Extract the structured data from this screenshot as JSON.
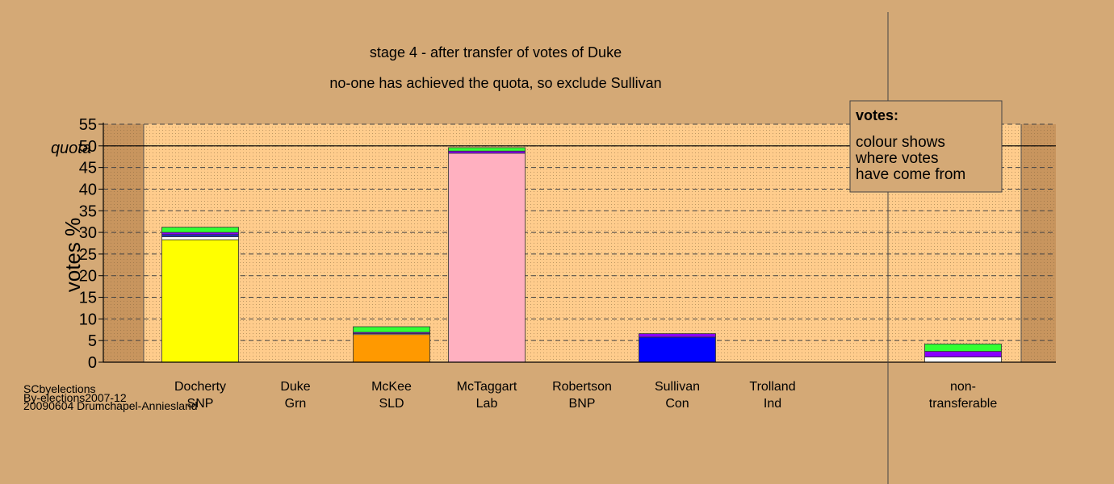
{
  "chart_data": {
    "type": "bar",
    "stacked": true,
    "title": "stage 4 - after transfer of votes of Duke",
    "subtitle": "no-one has achieved the quota, so exclude Sullivan",
    "ylabel": "votes %",
    "ylim": [
      0,
      55
    ],
    "yticks": [
      0,
      5,
      10,
      15,
      20,
      25,
      30,
      35,
      40,
      45,
      50,
      55
    ],
    "quota": {
      "label": "quota",
      "value": 50
    },
    "categories": [
      {
        "name": "Docherty",
        "party": "SNP"
      },
      {
        "name": "Duke",
        "party": "Grn"
      },
      {
        "name": "McKee",
        "party": "SLD"
      },
      {
        "name": "McTaggart",
        "party": "Lab"
      },
      {
        "name": "Robertson",
        "party": "BNP"
      },
      {
        "name": "Sullivan",
        "party": "Con"
      },
      {
        "name": "Trolland",
        "party": "Ind"
      },
      {
        "name": "non-",
        "party": "transferable"
      }
    ],
    "bars": [
      {
        "category": "Docherty",
        "segments": [
          {
            "color": "#ffff00",
            "value": 28.3
          },
          {
            "color": "#ffffff",
            "value": 0.7
          },
          {
            "color": "#2233cc",
            "value": 0.5
          },
          {
            "color": "#8800ff",
            "value": 0.5
          },
          {
            "color": "#33ff33",
            "value": 1.2
          }
        ]
      },
      {
        "category": "Duke",
        "segments": []
      },
      {
        "category": "McKee",
        "segments": [
          {
            "color": "#ff9900",
            "value": 6.4
          },
          {
            "color": "#ffffff",
            "value": 0.2
          },
          {
            "color": "#8800ff",
            "value": 0.3
          },
          {
            "color": "#33ff33",
            "value": 1.3
          }
        ]
      },
      {
        "category": "McTaggart",
        "segments": [
          {
            "color": "#ffb0c0",
            "value": 48.3
          },
          {
            "color": "#8800ff",
            "value": 0.5
          },
          {
            "color": "#33ff33",
            "value": 0.8
          }
        ]
      },
      {
        "category": "Robertson",
        "segments": []
      },
      {
        "category": "Sullivan",
        "segments": [
          {
            "color": "#0000ff",
            "value": 5.8
          },
          {
            "color": "#8800ff",
            "value": 0.8
          }
        ]
      },
      {
        "category": "Trolland",
        "segments": []
      },
      {
        "category": "non-transferable",
        "segments": [
          {
            "color": "#ffffff",
            "value": 1.2
          },
          {
            "color": "#8800ff",
            "value": 1.3
          },
          {
            "color": "#33ff33",
            "value": 1.7
          }
        ]
      }
    ],
    "legend": {
      "title": "votes:",
      "lines": [
        "colour shows",
        "where votes",
        "have come from"
      ],
      "placement": "top-right"
    },
    "grid": true,
    "plot_bg": "#ffcc8c",
    "page_bg": "#d4a976"
  },
  "footer": {
    "line1": "SCbyelections",
    "line2": "By-elections2007-12",
    "line3": "20090604 Drumchapel-Anniesland"
  }
}
